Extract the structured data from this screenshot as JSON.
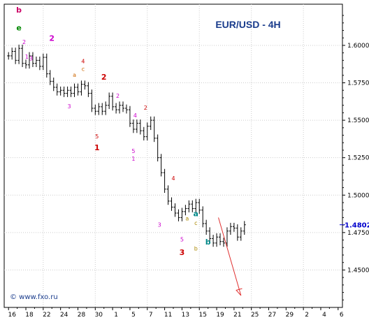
{
  "chart_data": {
    "type": "bar",
    "title": "EUR/USD - 4H",
    "watermark": "© www.fxo.ru",
    "last_price": "1.4802",
    "ylim": [
      1.425,
      1.6275
    ],
    "y_ticks": [
      "1.6000",
      "1.5750",
      "1.5500",
      "1.5250",
      "1.5000",
      "1.4750",
      "1.4500"
    ],
    "y_tick_values": [
      1.6,
      1.575,
      1.55,
      1.525,
      1.5,
      1.475,
      1.45
    ],
    "x_ticks": [
      "16",
      "18",
      "22",
      "24",
      "28",
      "30",
      "1",
      "5",
      "7",
      "11",
      "13",
      "15",
      "19",
      "21",
      "25",
      "27",
      "29",
      "2",
      "4",
      "6"
    ],
    "x_tick_indices": [
      0,
      2,
      4,
      6,
      8,
      10,
      12,
      14,
      16,
      18,
      20,
      22,
      24,
      26,
      28,
      30,
      32,
      34,
      36,
      38
    ],
    "grid": true,
    "bar_colors": {
      "bar": "#000000",
      "grid": "#cccccc",
      "forecast": "#e03030",
      "price_box": "#0000cc"
    },
    "series": [
      {
        "points": [
          [
            0.0,
            1.593
          ],
          [
            0.4,
            1.596
          ],
          [
            0.8,
            1.59
          ],
          [
            1.2,
            1.598
          ],
          [
            1.6,
            1.588
          ],
          [
            2.0,
            1.587
          ],
          [
            2.4,
            1.593
          ],
          [
            2.8,
            1.588
          ],
          [
            3.2,
            1.59
          ],
          [
            3.6,
            1.586
          ],
          [
            4.0,
            1.592
          ],
          [
            4.4,
            1.581
          ],
          [
            4.8,
            1.576
          ],
          [
            5.2,
            1.572
          ],
          [
            5.6,
            1.569
          ],
          [
            6.0,
            1.57
          ],
          [
            6.4,
            1.568
          ],
          [
            6.8,
            1.57
          ],
          [
            7.2,
            1.568
          ],
          [
            7.6,
            1.572
          ],
          [
            8.0,
            1.569
          ],
          [
            8.4,
            1.574
          ],
          [
            8.8,
            1.573
          ],
          [
            9.2,
            1.568
          ],
          [
            9.6,
            1.558
          ],
          [
            10.0,
            1.556
          ],
          [
            10.4,
            1.559
          ],
          [
            10.8,
            1.556
          ],
          [
            11.2,
            1.56
          ],
          [
            11.6,
            1.566
          ],
          [
            12.0,
            1.559
          ],
          [
            12.4,
            1.557
          ],
          [
            12.8,
            1.56
          ],
          [
            13.2,
            1.558
          ],
          [
            13.6,
            1.557
          ],
          [
            14.0,
            1.548
          ],
          [
            14.4,
            1.544
          ],
          [
            14.8,
            1.548
          ],
          [
            15.2,
            1.543
          ],
          [
            15.6,
            1.539
          ],
          [
            16.0,
            1.546
          ],
          [
            16.4,
            1.55
          ],
          [
            16.8,
            1.538
          ],
          [
            17.2,
            1.525
          ],
          [
            17.6,
            1.515
          ],
          [
            18.0,
            1.504
          ],
          [
            18.4,
            1.496
          ],
          [
            18.8,
            1.492
          ],
          [
            19.2,
            1.488
          ],
          [
            19.6,
            1.485
          ],
          [
            20.0,
            1.489
          ],
          [
            20.4,
            1.491
          ],
          [
            20.8,
            1.494
          ],
          [
            21.2,
            1.491
          ],
          [
            21.6,
            1.495
          ],
          [
            22.0,
            1.49
          ],
          [
            22.4,
            1.481
          ],
          [
            22.8,
            1.476
          ],
          [
            23.2,
            1.471
          ],
          [
            23.6,
            1.468
          ],
          [
            24.0,
            1.472
          ],
          [
            24.4,
            1.469
          ],
          [
            24.8,
            1.468
          ],
          [
            25.2,
            1.476
          ],
          [
            25.6,
            1.479
          ],
          [
            26.0,
            1.478
          ],
          [
            26.4,
            1.472
          ],
          [
            26.8,
            1.476
          ],
          [
            27.2,
            1.4802
          ]
        ]
      }
    ],
    "wave_labels": [
      {
        "text": "b",
        "x": 1.2,
        "y": 1.622,
        "color": "#cc0066",
        "size": "big"
      },
      {
        "text": "e",
        "x": 1.2,
        "y": 1.61,
        "color": "#008800",
        "size": "big"
      },
      {
        "text": "2",
        "x": 1.8,
        "y": 1.601,
        "color": "#cc00cc",
        "size": "small"
      },
      {
        "text": "1",
        "x": 2.1,
        "y": 1.591,
        "color": "#cc00cc",
        "size": "small"
      },
      {
        "text": "3",
        "x": 2.6,
        "y": 1.59,
        "color": "#cc00cc",
        "size": "small"
      },
      {
        "text": "2",
        "x": 5.0,
        "y": 1.603,
        "color": "#cc00cc",
        "size": "big"
      },
      {
        "text": "4",
        "x": 8.6,
        "y": 1.588,
        "color": "#cc0000",
        "size": "small"
      },
      {
        "text": "c",
        "x": 8.6,
        "y": 1.583,
        "color": "#cc6600",
        "size": "small"
      },
      {
        "text": "a",
        "x": 7.6,
        "y": 1.579,
        "color": "#cc6600",
        "size": "small"
      },
      {
        "text": "3",
        "x": 7.0,
        "y": 1.558,
        "color": "#cc00cc",
        "size": "small"
      },
      {
        "text": "2",
        "x": 11.0,
        "y": 1.577,
        "color": "#cc0000",
        "size": "big"
      },
      {
        "text": "5",
        "x": 10.2,
        "y": 1.538,
        "color": "#cc0000",
        "size": "small"
      },
      {
        "text": "1",
        "x": 10.2,
        "y": 1.53,
        "color": "#cc0000",
        "size": "big"
      },
      {
        "text": "2",
        "x": 12.6,
        "y": 1.565,
        "color": "#cc00cc",
        "size": "small"
      },
      {
        "text": "4",
        "x": 14.6,
        "y": 1.552,
        "color": "#cc00cc",
        "size": "small"
      },
      {
        "text": "2",
        "x": 15.8,
        "y": 1.557,
        "color": "#cc0000",
        "size": "small"
      },
      {
        "text": "5",
        "x": 14.4,
        "y": 1.528,
        "color": "#cc00cc",
        "size": "small"
      },
      {
        "text": "1",
        "x": 14.4,
        "y": 1.523,
        "color": "#cc00cc",
        "size": "small"
      },
      {
        "text": "4",
        "x": 19.0,
        "y": 1.51,
        "color": "#cc0000",
        "size": "small"
      },
      {
        "text": "3",
        "x": 17.4,
        "y": 1.479,
        "color": "#cc00cc",
        "size": "small"
      },
      {
        "text": "5",
        "x": 20.0,
        "y": 1.469,
        "color": "#cc00cc",
        "size": "small"
      },
      {
        "text": "3",
        "x": 20.0,
        "y": 1.46,
        "color": "#cc0000",
        "size": "big"
      },
      {
        "text": "a",
        "x": 21.6,
        "y": 1.486,
        "color": "#008888",
        "size": "big"
      },
      {
        "text": "a",
        "x": 20.6,
        "y": 1.483,
        "color": "#aa8800",
        "size": "small"
      },
      {
        "text": "c",
        "x": 21.6,
        "y": 1.48,
        "color": "#aa8800",
        "size": "small"
      },
      {
        "text": "b",
        "x": 21.6,
        "y": 1.463,
        "color": "#aa8800",
        "size": "small"
      },
      {
        "text": "b",
        "x": 23.0,
        "y": 1.467,
        "color": "#008888",
        "size": "big"
      }
    ],
    "forecast_arrow": {
      "from": [
        24.2,
        1.485
      ],
      "to": [
        26.8,
        1.433
      ]
    }
  }
}
